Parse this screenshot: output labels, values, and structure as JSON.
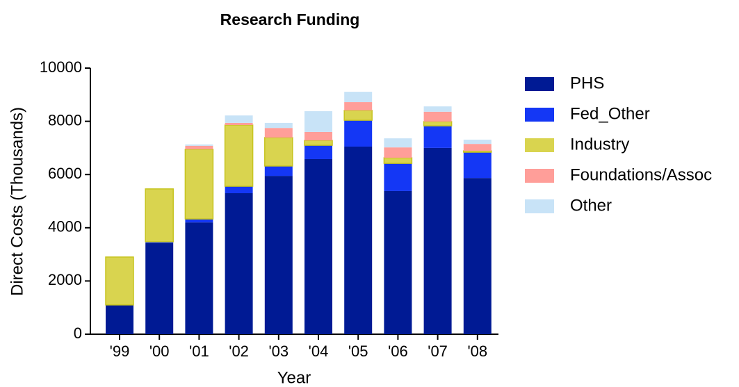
{
  "chart_data": {
    "type": "stacked_bar",
    "title": "Research Funding",
    "x_label": "Year",
    "y_label": "Direct Costs (Thousands)",
    "categories": [
      "'99",
      "'00",
      "'01",
      "'02",
      "'03",
      "'04",
      "'05",
      "'06",
      "'07",
      "'08"
    ],
    "series": [
      {
        "name": "PHS",
        "color": "#001a94",
        "values": [
          1100,
          3420,
          4200,
          5300,
          5950,
          6580,
          7050,
          5380,
          7000,
          5870
        ]
      },
      {
        "name": "Fed_Other",
        "color": "#1437f5",
        "values": [
          0,
          50,
          130,
          260,
          370,
          520,
          990,
          1040,
          830,
          970
        ]
      },
      {
        "name": "Industry",
        "color": "#d9d44f",
        "values": [
          1800,
          1990,
          2620,
          2300,
          1070,
          180,
          370,
          210,
          160,
          50
        ]
      },
      {
        "name": "Foundations/Assoc",
        "color": "#ff9e99",
        "values": [
          0,
          0,
          130,
          80,
          360,
          320,
          310,
          390,
          370,
          260
        ]
      },
      {
        "name": "Other",
        "color": "#c8e3f7",
        "values": [
          0,
          0,
          50,
          280,
          190,
          780,
          390,
          340,
          200,
          160
        ]
      }
    ],
    "ylim": [
      0,
      10000
    ],
    "yticks": [
      0,
      2000,
      4000,
      6000,
      8000,
      10000
    ],
    "legend": "right"
  }
}
